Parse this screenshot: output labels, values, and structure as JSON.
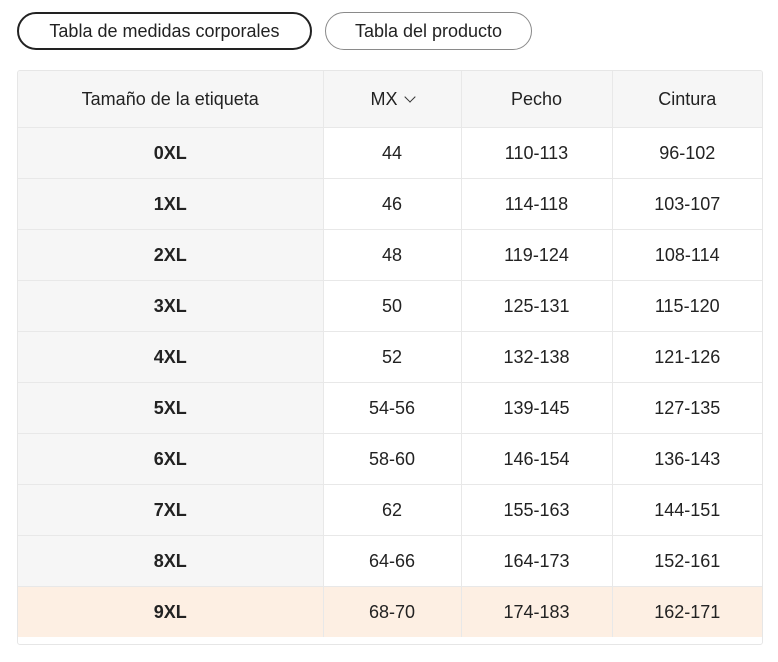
{
  "tabs": {
    "body": "Tabla de medidas corporales",
    "product": "Tabla del producto"
  },
  "table": {
    "headers": [
      "Tamaño de la etiqueta",
      "MX",
      "Pecho",
      "Cintura"
    ],
    "unit_selector_icon": "chevron-down-icon",
    "rows": [
      [
        "0XL",
        "44",
        "110-113",
        "96-102"
      ],
      [
        "1XL",
        "46",
        "114-118",
        "103-107"
      ],
      [
        "2XL",
        "48",
        "119-124",
        "108-114"
      ],
      [
        "3XL",
        "50",
        "125-131",
        "115-120"
      ],
      [
        "4XL",
        "52",
        "132-138",
        "121-126"
      ],
      [
        "5XL",
        "54-56",
        "139-145",
        "127-135"
      ],
      [
        "6XL",
        "58-60",
        "146-154",
        "136-143"
      ],
      [
        "7XL",
        "62",
        "155-163",
        "144-151"
      ],
      [
        "8XL",
        "64-66",
        "164-173",
        "152-161"
      ],
      [
        "9XL",
        "68-70",
        "174-183",
        "162-171"
      ]
    ],
    "highlight_color": "#fdefe3"
  }
}
